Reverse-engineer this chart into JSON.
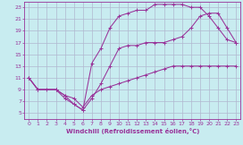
{
  "xlabel": "Windchill (Refroidissement éolien,°C)",
  "bg_color": "#c8ecf0",
  "grid_color": "#b0b8d0",
  "line_color": "#993399",
  "xlim": [
    -0.5,
    23.5
  ],
  "ylim": [
    4.0,
    24.0
  ],
  "xticks": [
    0,
    1,
    2,
    3,
    4,
    5,
    6,
    7,
    8,
    9,
    10,
    11,
    12,
    13,
    14,
    15,
    16,
    17,
    18,
    19,
    20,
    21,
    22,
    23
  ],
  "yticks": [
    5,
    7,
    9,
    11,
    13,
    15,
    17,
    19,
    21,
    23
  ],
  "line1_x": [
    0,
    1,
    2,
    3,
    4,
    5,
    6,
    7,
    8,
    9,
    10,
    11,
    12,
    13,
    14,
    15,
    16,
    17,
    18,
    19,
    20,
    21,
    22,
    23
  ],
  "line1_y": [
    11,
    9,
    9,
    9,
    8,
    7.5,
    6,
    8,
    9,
    9.5,
    10,
    10.5,
    11,
    11.5,
    12,
    12.5,
    13,
    13,
    13,
    13,
    13,
    13,
    13,
    13
  ],
  "line2_x": [
    0,
    1,
    3,
    4,
    5,
    6,
    7,
    8,
    9,
    10,
    11,
    12,
    13,
    14,
    15,
    16,
    17,
    18,
    19,
    20,
    21,
    22,
    23
  ],
  "line2_y": [
    11,
    9,
    9,
    7.5,
    6.5,
    5.5,
    7.5,
    10,
    13,
    16,
    16.5,
    16.5,
    17,
    17,
    17,
    17.5,
    18,
    19.5,
    21.5,
    22,
    22,
    19.5,
    17
  ],
  "line3_x": [
    0,
    1,
    3,
    4,
    5,
    6,
    7,
    8,
    9,
    10,
    11,
    12,
    13,
    14,
    15,
    16,
    17,
    18,
    19,
    20,
    21,
    22,
    23
  ],
  "line3_y": [
    11,
    9,
    9,
    8,
    6.5,
    5.5,
    13.5,
    16,
    19.5,
    21.5,
    22,
    22.5,
    22.5,
    23.5,
    23.5,
    23.5,
    23.5,
    23,
    23,
    21.5,
    19.5,
    17.5,
    17
  ]
}
